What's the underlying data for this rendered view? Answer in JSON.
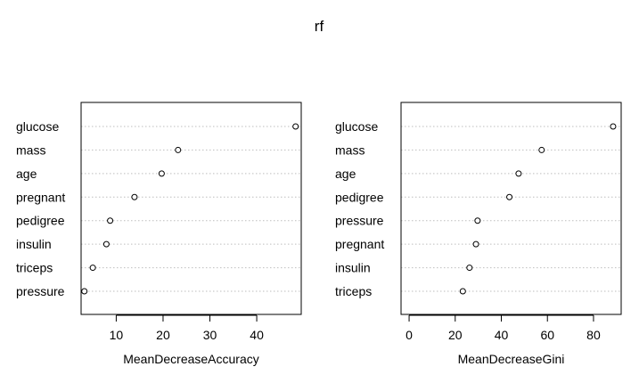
{
  "title": "rf",
  "colors": {
    "axis": "#000000",
    "grid": "#bebebe",
    "point_fill": "#ffffff",
    "point_stroke": "#000000"
  },
  "chart_data": [
    {
      "type": "scatter",
      "subtype": "dotchart",
      "xlabel": "MeanDecreaseAccuracy",
      "ylabel": "",
      "xlim": [
        2.5,
        49.5
      ],
      "xticks": [
        10,
        20,
        30,
        40
      ],
      "grid": "horizontal-dotted",
      "categories": [
        "glucose",
        "mass",
        "age",
        "pregnant",
        "pedigree",
        "insulin",
        "triceps",
        "pressure"
      ],
      "values": [
        48.3,
        23.2,
        19.7,
        13.9,
        8.7,
        7.9,
        5.0,
        3.2
      ]
    },
    {
      "type": "scatter",
      "subtype": "dotchart",
      "xlabel": "MeanDecreaseGini",
      "ylabel": "",
      "xlim": [
        -3.5,
        92
      ],
      "xticks": [
        0,
        20,
        40,
        60,
        80
      ],
      "grid": "horizontal-dotted",
      "categories": [
        "glucose",
        "mass",
        "age",
        "pedigree",
        "pressure",
        "pregnant",
        "insulin",
        "triceps"
      ],
      "values": [
        88.5,
        57.5,
        47.5,
        43.5,
        29.7,
        29.0,
        26.2,
        23.3
      ]
    }
  ]
}
